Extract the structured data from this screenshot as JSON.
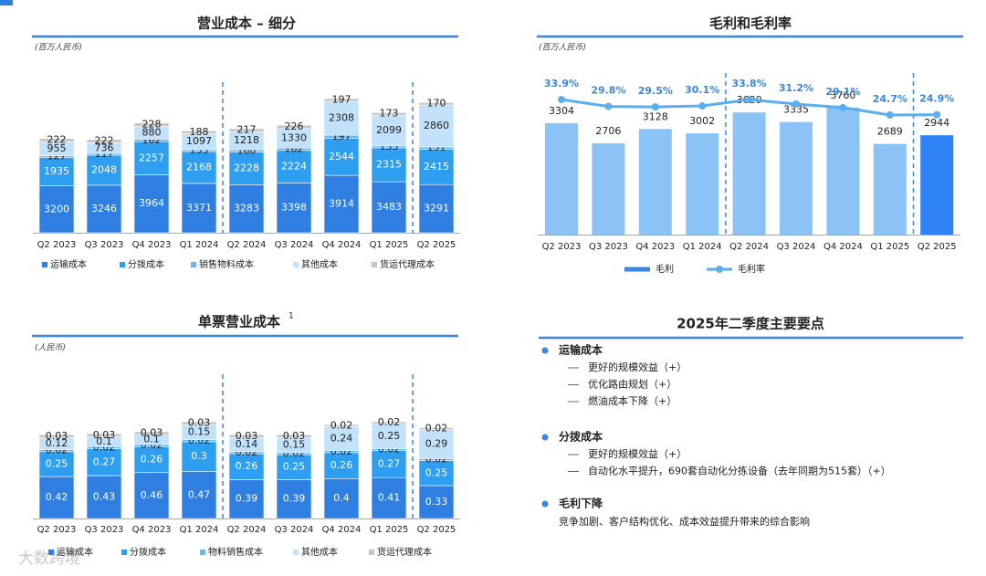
{
  "chart_data": [
    {
      "type": "stacked_bar",
      "title": "营业成本 – 细分",
      "unit": "(百万人民币)",
      "categories": [
        "Q2 2023",
        "Q3 2023",
        "Q4 2023",
        "Q1 2024",
        "Q2 2024",
        "Q3 2024",
        "Q4 2024",
        "Q1 2025",
        "Q2 2025"
      ],
      "series": [
        {
          "name": "运输成本",
          "color": "#2f7fe3",
          "values": [
            3200,
            3246,
            3964,
            3371,
            3283,
            3398,
            3914,
            3483,
            3291
          ]
        },
        {
          "name": "分拨成本",
          "color": "#2d9ef0",
          "values": [
            1935,
            2048,
            2257,
            2168,
            2228,
            2224,
            2544,
            2315,
            2415
          ]
        },
        {
          "name": "销售物料成本",
          "color": "#6db7f2",
          "values": [
            127,
            117,
            162,
            133,
            160,
            162,
            197,
            133,
            151
          ]
        },
        {
          "name": "其他成本",
          "color": "#c2e1fa",
          "values": [
            955,
            736,
            880,
            1097,
            1218,
            1330,
            2308,
            2099,
            2860
          ]
        },
        {
          "name": "货运代理成本",
          "color": "#c6c6c6",
          "values": [
            222,
            222,
            228,
            188,
            217,
            226,
            197,
            173,
            170
          ]
        }
      ]
    },
    {
      "type": "bar_line",
      "title": "毛利和毛利率",
      "unit": "(百万人民币)",
      "categories": [
        "Q2 2023",
        "Q3 2023",
        "Q4 2023",
        "Q1 2024",
        "Q2 2024",
        "Q3 2024",
        "Q4 2024",
        "Q1 2025",
        "Q2 2025"
      ],
      "series": [
        {
          "name": "毛利",
          "color": "#3a86e0",
          "colors": [
            "#8cc3f7",
            "#8cc3f7",
            "#8cc3f7",
            "#8cc3f7",
            "#8cc3f7",
            "#8cc3f7",
            "#8cc3f7",
            "#8cc3f7",
            "#2e82f5"
          ],
          "values": [
            3304,
            2706,
            3128,
            3002,
            3620,
            3335,
            3760,
            2689,
            2944
          ]
        },
        {
          "name": "毛利率",
          "color": "#5aaef0",
          "axis": "y2",
          "values": [
            33.9,
            29.8,
            29.5,
            30.1,
            33.8,
            31.2,
            29.1,
            24.7,
            24.9
          ],
          "value_labels": [
            "33.9%",
            "29.8%",
            "29.5%",
            "30.1%",
            "33.8%",
            "31.2%",
            "29.1%",
            "24.7%",
            "24.9%"
          ]
        }
      ]
    },
    {
      "type": "stacked_bar",
      "title": "单票营业成本",
      "title_note": "1",
      "unit": "(人民币)",
      "categories": [
        "Q2 2023",
        "Q3 2023",
        "Q4 2023",
        "Q1 2024",
        "Q2 2024",
        "Q3 2024",
        "Q4 2024",
        "Q1 2025",
        "Q2 2025"
      ],
      "series": [
        {
          "name": "运输成本",
          "color": "#2f7fe3",
          "values": [
            0.42,
            0.43,
            0.46,
            0.47,
            0.39,
            0.39,
            0.4,
            0.41,
            0.33
          ]
        },
        {
          "name": "分拨成本",
          "color": "#2d9ef0",
          "values": [
            0.25,
            0.27,
            0.26,
            0.3,
            0.26,
            0.25,
            0.26,
            0.27,
            0.25
          ]
        },
        {
          "name": "物料销售成本",
          "color": "#6db7f2",
          "values": [
            0.02,
            0.02,
            0.02,
            0.02,
            0.02,
            0.02,
            0.02,
            0.02,
            0.02
          ]
        },
        {
          "name": "其他成本",
          "color": "#c2e1fa",
          "values": [
            0.12,
            0.1,
            0.1,
            0.15,
            0.14,
            0.15,
            0.24,
            0.25,
            0.29
          ]
        },
        {
          "name": "货运代理成本",
          "color": "#c6c6c6",
          "values": [
            0.03,
            0.03,
            0.03,
            0.03,
            0.03,
            0.03,
            0.02,
            0.02,
            0.02
          ]
        }
      ]
    }
  ],
  "highlights": {
    "title": "2025年二季度主要要点",
    "sections": [
      {
        "heading": "运输成本",
        "items": [
          "更好的规模效益（+）",
          "优化路由规划（+）",
          "燃油成本下降（+）"
        ]
      },
      {
        "heading": "分拨成本",
        "items": [
          "更好的规模效益（+）",
          "自动化水平提升，690套自动化分拣设备（去年同期为515套）（+）"
        ]
      },
      {
        "heading": "毛利下降",
        "text": "竞争加剧、客户结构优化、成本效益提升带来的综合影响"
      }
    ]
  },
  "watermark": "大数跨境"
}
